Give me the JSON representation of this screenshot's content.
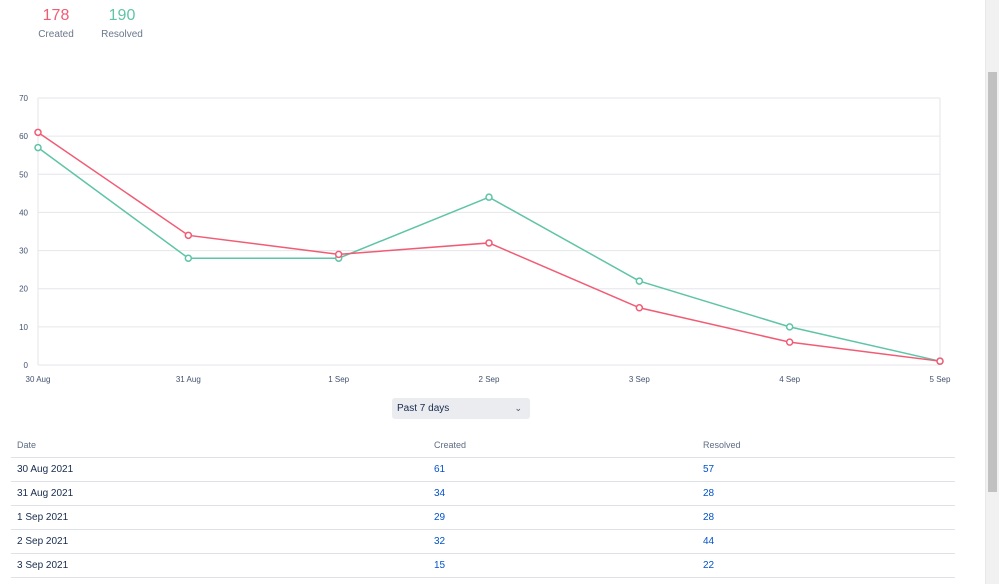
{
  "summary": {
    "created": {
      "value": "178",
      "label": "Created"
    },
    "resolved": {
      "value": "190",
      "label": "Resolved"
    }
  },
  "colors": {
    "created": "#f15c75",
    "resolved": "#5fc4a6"
  },
  "chart_data": {
    "type": "line",
    "categories": [
      "30 Aug",
      "31 Aug",
      "1 Sep",
      "2 Sep",
      "3 Sep",
      "4 Sep",
      "5 Sep"
    ],
    "series": [
      {
        "name": "Created",
        "values": [
          61,
          34,
          29,
          32,
          15,
          6,
          1
        ]
      },
      {
        "name": "Resolved",
        "values": [
          57,
          28,
          28,
          44,
          22,
          10,
          1
        ]
      }
    ],
    "ylim": [
      0,
      70
    ],
    "yticks": [
      "0",
      "10",
      "20",
      "30",
      "40",
      "50",
      "60",
      "70"
    ],
    "grid": true,
    "title": "",
    "xlabel": "",
    "ylabel": ""
  },
  "filter": {
    "selected": "Past 7 days"
  },
  "table": {
    "headers": [
      "Date",
      "Created",
      "Resolved"
    ],
    "rows": [
      [
        "30 Aug 2021",
        "61",
        "57"
      ],
      [
        "31 Aug 2021",
        "34",
        "28"
      ],
      [
        "1 Sep 2021",
        "29",
        "28"
      ],
      [
        "2 Sep 2021",
        "32",
        "44"
      ],
      [
        "3 Sep 2021",
        "15",
        "22"
      ]
    ]
  }
}
